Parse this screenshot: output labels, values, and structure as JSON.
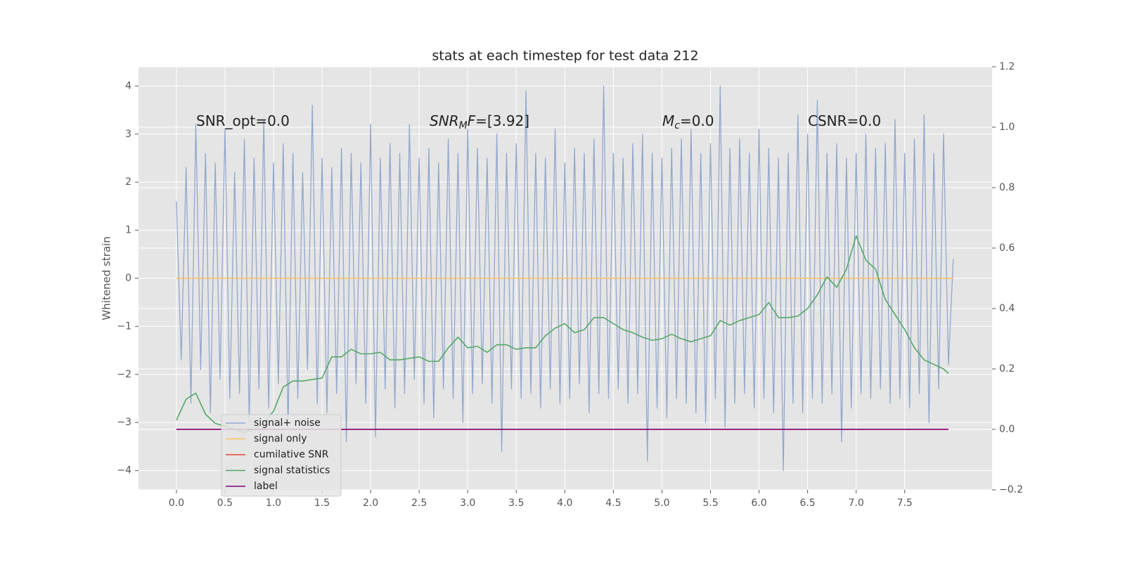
{
  "chart_data": {
    "type": "line",
    "title": "stats at each timestep for test data 212",
    "y_label": "Whitened strain",
    "xlim": [
      -0.39,
      8.4
    ],
    "ylim": [
      -4.4,
      4.4
    ],
    "y2lim": [
      -0.2,
      1.2
    ],
    "xticks": [
      {
        "value": 0,
        "label": "0.0"
      },
      0.5,
      {
        "value": 1,
        "label": "1.0"
      },
      1.5,
      {
        "value": 2,
        "label": "2.0"
      },
      2.5,
      {
        "value": 3,
        "label": "3.0"
      },
      3.5,
      {
        "value": 4,
        "label": "4.0"
      },
      4.5,
      {
        "value": 5,
        "label": "5.0"
      },
      5.5,
      {
        "value": 6,
        "label": "6.0"
      },
      6.5,
      {
        "value": 7,
        "label": "7.0"
      },
      7.5
    ],
    "yticks": [
      {
        "value": -4,
        "label": "−4"
      },
      {
        "value": -3,
        "label": "−3"
      },
      {
        "value": -2,
        "label": "−2"
      },
      {
        "value": -1,
        "label": "−1"
      },
      0,
      1,
      2,
      3,
      4
    ],
    "y2ticks": [
      {
        "value": -0.2,
        "label": "−0.2"
      },
      {
        "value": 0,
        "label": "0.0"
      },
      0.2,
      0.4,
      0.6,
      0.8,
      {
        "value": 1,
        "label": "1.0"
      },
      1.2
    ],
    "grid": true,
    "legend": "lower left",
    "annotations": [
      {
        "parts": [
          {
            "text": "SNR_opt=0.0"
          }
        ]
      },
      {
        "parts": [
          {
            "text": "SNR",
            "style": "italic"
          },
          {
            "text": "M",
            "style": "italic-sub"
          },
          {
            "text": "F",
            "style": "italic"
          },
          {
            "text": "=[3.92]"
          }
        ]
      },
      {
        "parts": [
          {
            "text": "M",
            "style": "italic"
          },
          {
            "text": "c",
            "style": "italic-sub"
          },
          {
            "text": "=0.0"
          }
        ]
      },
      {
        "parts": [
          {
            "text": "CSNR=0.0"
          }
        ]
      }
    ],
    "series": [
      {
        "name": "signal+ noise",
        "color": "#92a8cd",
        "x": [
          0,
          0.05,
          0.1,
          0.15,
          0.2,
          0.25,
          0.3,
          0.35,
          0.4,
          0.45,
          0.5,
          0.55,
          0.6,
          0.65,
          0.7,
          0.75,
          0.8,
          0.85,
          0.9,
          0.95,
          1,
          1.05,
          1.1,
          1.15,
          1.2,
          1.25,
          1.3,
          1.35,
          1.4,
          1.45,
          1.5,
          1.55,
          1.6,
          1.65,
          1.7,
          1.75,
          1.8,
          1.85,
          1.9,
          1.95,
          2,
          2.05,
          2.1,
          2.15,
          2.2,
          2.25,
          2.3,
          2.35,
          2.4,
          2.45,
          2.5,
          2.55,
          2.6,
          2.65,
          2.7,
          2.75,
          2.8,
          2.85,
          2.9,
          2.95,
          3,
          3.05,
          3.1,
          3.15,
          3.2,
          3.25,
          3.3,
          3.35,
          3.4,
          3.45,
          3.5,
          3.55,
          3.6,
          3.65,
          3.7,
          3.75,
          3.8,
          3.85,
          3.9,
          3.95,
          4,
          4.05,
          4.1,
          4.15,
          4.2,
          4.25,
          4.3,
          4.35,
          4.4,
          4.45,
          4.5,
          4.55,
          4.6,
          4.65,
          4.7,
          4.75,
          4.8,
          4.85,
          4.9,
          4.95,
          5,
          5.05,
          5.1,
          5.15,
          5.2,
          5.25,
          5.3,
          5.35,
          5.4,
          5.45,
          5.5,
          5.55,
          5.6,
          5.65,
          5.7,
          5.75,
          5.8,
          5.85,
          5.9,
          5.95,
          6,
          6.05,
          6.1,
          6.15,
          6.2,
          6.25,
          6.3,
          6.35,
          6.4,
          6.45,
          6.5,
          6.55,
          6.6,
          6.65,
          6.7,
          6.75,
          6.8,
          6.85,
          6.9,
          6.95,
          7,
          7.05,
          7.1,
          7.15,
          7.2,
          7.25,
          7.3,
          7.35,
          7.4,
          7.45,
          7.5,
          7.55,
          7.6,
          7.65,
          7.7,
          7.75,
          7.8,
          7.85,
          7.9,
          7.95,
          8
        ],
        "values": [
          1.6,
          -1.7,
          2.3,
          -2.6,
          3.2,
          -1.9,
          2.6,
          -2.8,
          2.4,
          -2.1,
          3.1,
          -2.5,
          2.2,
          -2.4,
          2.9,
          -3.0,
          2.5,
          -2.3,
          3.3,
          -2.7,
          2.4,
          -2.2,
          2.8,
          -3.1,
          2.6,
          -2.5,
          2.2,
          -1.9,
          3.6,
          -2.6,
          2.5,
          -2.8,
          2.3,
          -2.4,
          2.7,
          -3.4,
          2.6,
          -2.2,
          2.4,
          -2.6,
          3.2,
          -3.3,
          2.5,
          -2.3,
          2.8,
          -2.7,
          2.6,
          -2.4,
          3.2,
          -2.1,
          2.5,
          -2.6,
          2.7,
          -2.9,
          2.4,
          -2.3,
          2.9,
          -2.5,
          2.6,
          -3.0,
          3.1,
          -2.4,
          2.7,
          -2.2,
          2.5,
          -2.6,
          3.0,
          -3.6,
          2.6,
          -2.3,
          2.8,
          -2.5,
          3.9,
          -2.4,
          2.6,
          -2.7,
          2.5,
          -2.3,
          3.1,
          -2.6,
          2.4,
          -2.5,
          2.7,
          -2.2,
          2.6,
          -2.8,
          2.9,
          -2.4,
          4.0,
          -2.5,
          2.6,
          -2.3,
          2.5,
          -2.6,
          2.8,
          -2.4,
          3.0,
          -3.8,
          2.6,
          -2.7,
          2.5,
          -2.9,
          2.7,
          -2.5,
          2.9,
          -2.6,
          3.1,
          -2.8,
          2.6,
          -3.0,
          2.8,
          -2.5,
          4.0,
          -3.1,
          2.7,
          -2.6,
          2.9,
          -2.4,
          2.6,
          -2.7,
          3.1,
          -2.5,
          2.7,
          -2.8,
          2.5,
          -4.0,
          2.6,
          -2.6,
          3.4,
          -2.8,
          3.0,
          -2.5,
          3.7,
          -2.6,
          2.6,
          -2.4,
          2.8,
          -3.4,
          2.5,
          -2.7,
          2.6,
          -2.4,
          3.0,
          -2.5,
          2.7,
          -2.3,
          2.8,
          -2.6,
          3.3,
          -2.5,
          2.6,
          -2.7,
          2.9,
          -2.4,
          3.4,
          -3.0,
          2.6,
          -2.3,
          3.0,
          -1.8,
          0.4
        ]
      },
      {
        "name": "signal only",
        "color": "#fbc15e",
        "x": [
          0,
          8
        ],
        "values": [
          0,
          0
        ]
      },
      {
        "name": "cumilative SNR",
        "color": "#e24a33",
        "axis": "y2",
        "x": [
          0,
          7.95
        ],
        "values": [
          0,
          0
        ]
      },
      {
        "name": "signal statistics",
        "color": "#55a868",
        "axis": "y2",
        "x": [
          0,
          0.1,
          0.2,
          0.3,
          0.4,
          0.5,
          0.6,
          0.7,
          0.8,
          0.9,
          1,
          1.1,
          1.2,
          1.3,
          1.4,
          1.5,
          1.6,
          1.7,
          1.8,
          1.9,
          2,
          2.1,
          2.2,
          2.3,
          2.4,
          2.5,
          2.6,
          2.7,
          2.8,
          2.9,
          3,
          3.1,
          3.2,
          3.3,
          3.4,
          3.5,
          3.6,
          3.7,
          3.8,
          3.9,
          4,
          4.1,
          4.2,
          4.3,
          4.4,
          4.5,
          4.6,
          4.7,
          4.8,
          4.9,
          5,
          5.1,
          5.2,
          5.3,
          5.4,
          5.5,
          5.6,
          5.7,
          5.8,
          5.9,
          6,
          6.1,
          6.2,
          6.3,
          6.4,
          6.5,
          6.6,
          6.7,
          6.8,
          6.9,
          7,
          7.1,
          7.2,
          7.3,
          7.4,
          7.5,
          7.6,
          7.7,
          7.8,
          7.9,
          7.95
        ],
        "values": [
          0.03,
          0.1,
          0.12,
          0.05,
          0.02,
          0.01,
          0.0,
          -0.01,
          0.0,
          0.02,
          0.06,
          0.14,
          0.16,
          0.16,
          0.165,
          0.17,
          0.24,
          0.24,
          0.265,
          0.25,
          0.25,
          0.255,
          0.23,
          0.23,
          0.235,
          0.24,
          0.225,
          0.225,
          0.27,
          0.305,
          0.27,
          0.275,
          0.255,
          0.28,
          0.28,
          0.265,
          0.27,
          0.27,
          0.31,
          0.335,
          0.35,
          0.32,
          0.33,
          0.37,
          0.37,
          0.35,
          0.33,
          0.32,
          0.305,
          0.295,
          0.3,
          0.315,
          0.3,
          0.29,
          0.3,
          0.31,
          0.36,
          0.345,
          0.36,
          0.37,
          0.38,
          0.42,
          0.37,
          0.37,
          0.375,
          0.4,
          0.445,
          0.505,
          0.47,
          0.53,
          0.64,
          0.56,
          0.53,
          0.43,
          0.38,
          0.33,
          0.27,
          0.23,
          0.215,
          0.2,
          0.185
        ]
      },
      {
        "name": "label",
        "color": "#800080",
        "axis": "y2",
        "x": [
          0,
          7.95
        ],
        "values": [
          0,
          0
        ]
      }
    ]
  }
}
